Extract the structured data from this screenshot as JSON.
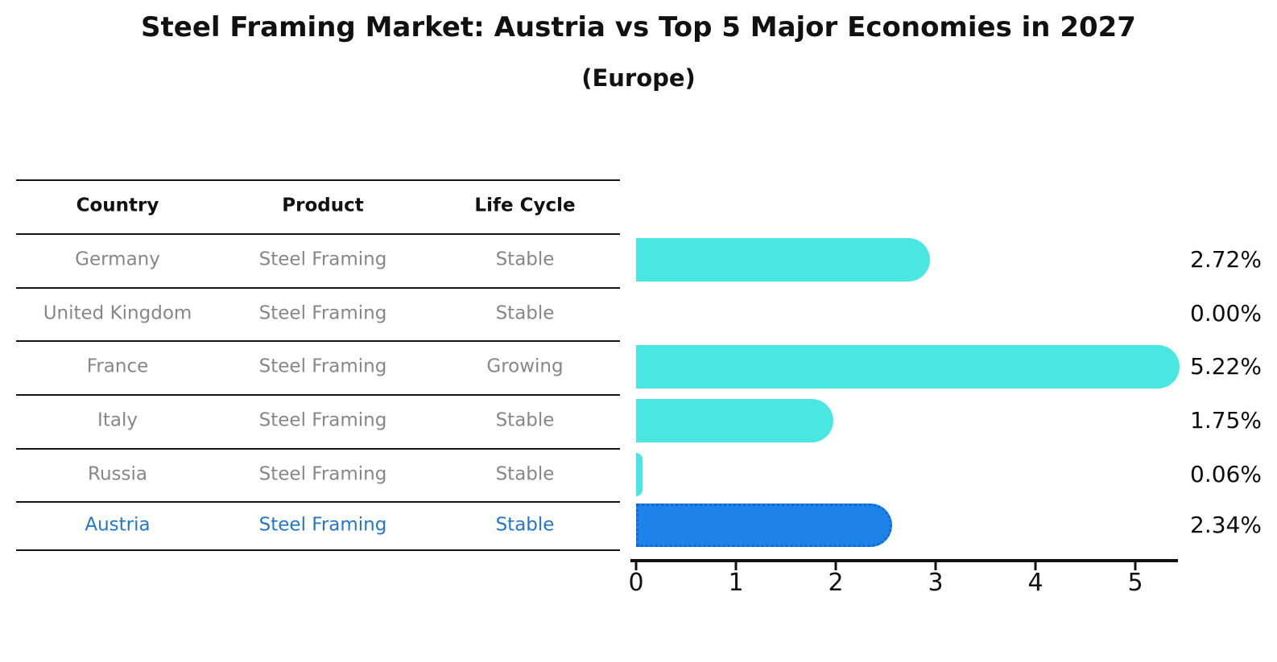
{
  "title": "Steel Framing Market: Austria vs Top 5 Major Economies in 2027",
  "subtitle": "(Europe)",
  "table": {
    "headers": [
      "Country",
      "Product",
      "Life Cycle"
    ],
    "rows": [
      {
        "country": "Germany",
        "product": "Steel Framing",
        "life_cycle": "Stable",
        "highlight": false
      },
      {
        "country": "United Kingdom",
        "product": "Steel Framing",
        "life_cycle": "Stable",
        "highlight": false
      },
      {
        "country": "France",
        "product": "Steel Framing",
        "life_cycle": "Growing",
        "highlight": false
      },
      {
        "country": "Italy",
        "product": "Steel Framing",
        "life_cycle": "Stable",
        "highlight": false
      },
      {
        "country": "Russia",
        "product": "Steel Framing",
        "life_cycle": "Stable",
        "highlight": false
      },
      {
        "country": "Austria",
        "product": "Steel Framing",
        "life_cycle": "Stable",
        "highlight": true
      }
    ]
  },
  "chart_data": {
    "type": "bar",
    "orientation": "horizontal",
    "title": "Steel Framing Market: Austria vs Top 5 Major Economies in 2027 (Europe)",
    "categories": [
      "Germany",
      "United Kingdom",
      "France",
      "Italy",
      "Russia",
      "Austria"
    ],
    "values": [
      2.72,
      0.0,
      5.22,
      1.75,
      0.06,
      2.34
    ],
    "value_labels": [
      "2.72%",
      "0.00%",
      "5.22%",
      "1.75%",
      "0.06%",
      "2.34%"
    ],
    "highlight_index": 5,
    "x_ticks": [
      0,
      1,
      2,
      3,
      4,
      5
    ],
    "x_tick_labels": [
      "0",
      "1",
      "2",
      "3",
      "4",
      "5"
    ],
    "xlim": [
      0,
      5.4
    ],
    "grid": false,
    "legend": false,
    "colors": {
      "bar": "#4ae7e2",
      "highlight_bar": "#1d83ea",
      "highlight_border": "#0e6ad0",
      "highlight_text": "#2277cc",
      "row_text": "#878787",
      "header_text": "#111111",
      "value_text": "#0d0d0d",
      "axis": "#111111"
    }
  }
}
